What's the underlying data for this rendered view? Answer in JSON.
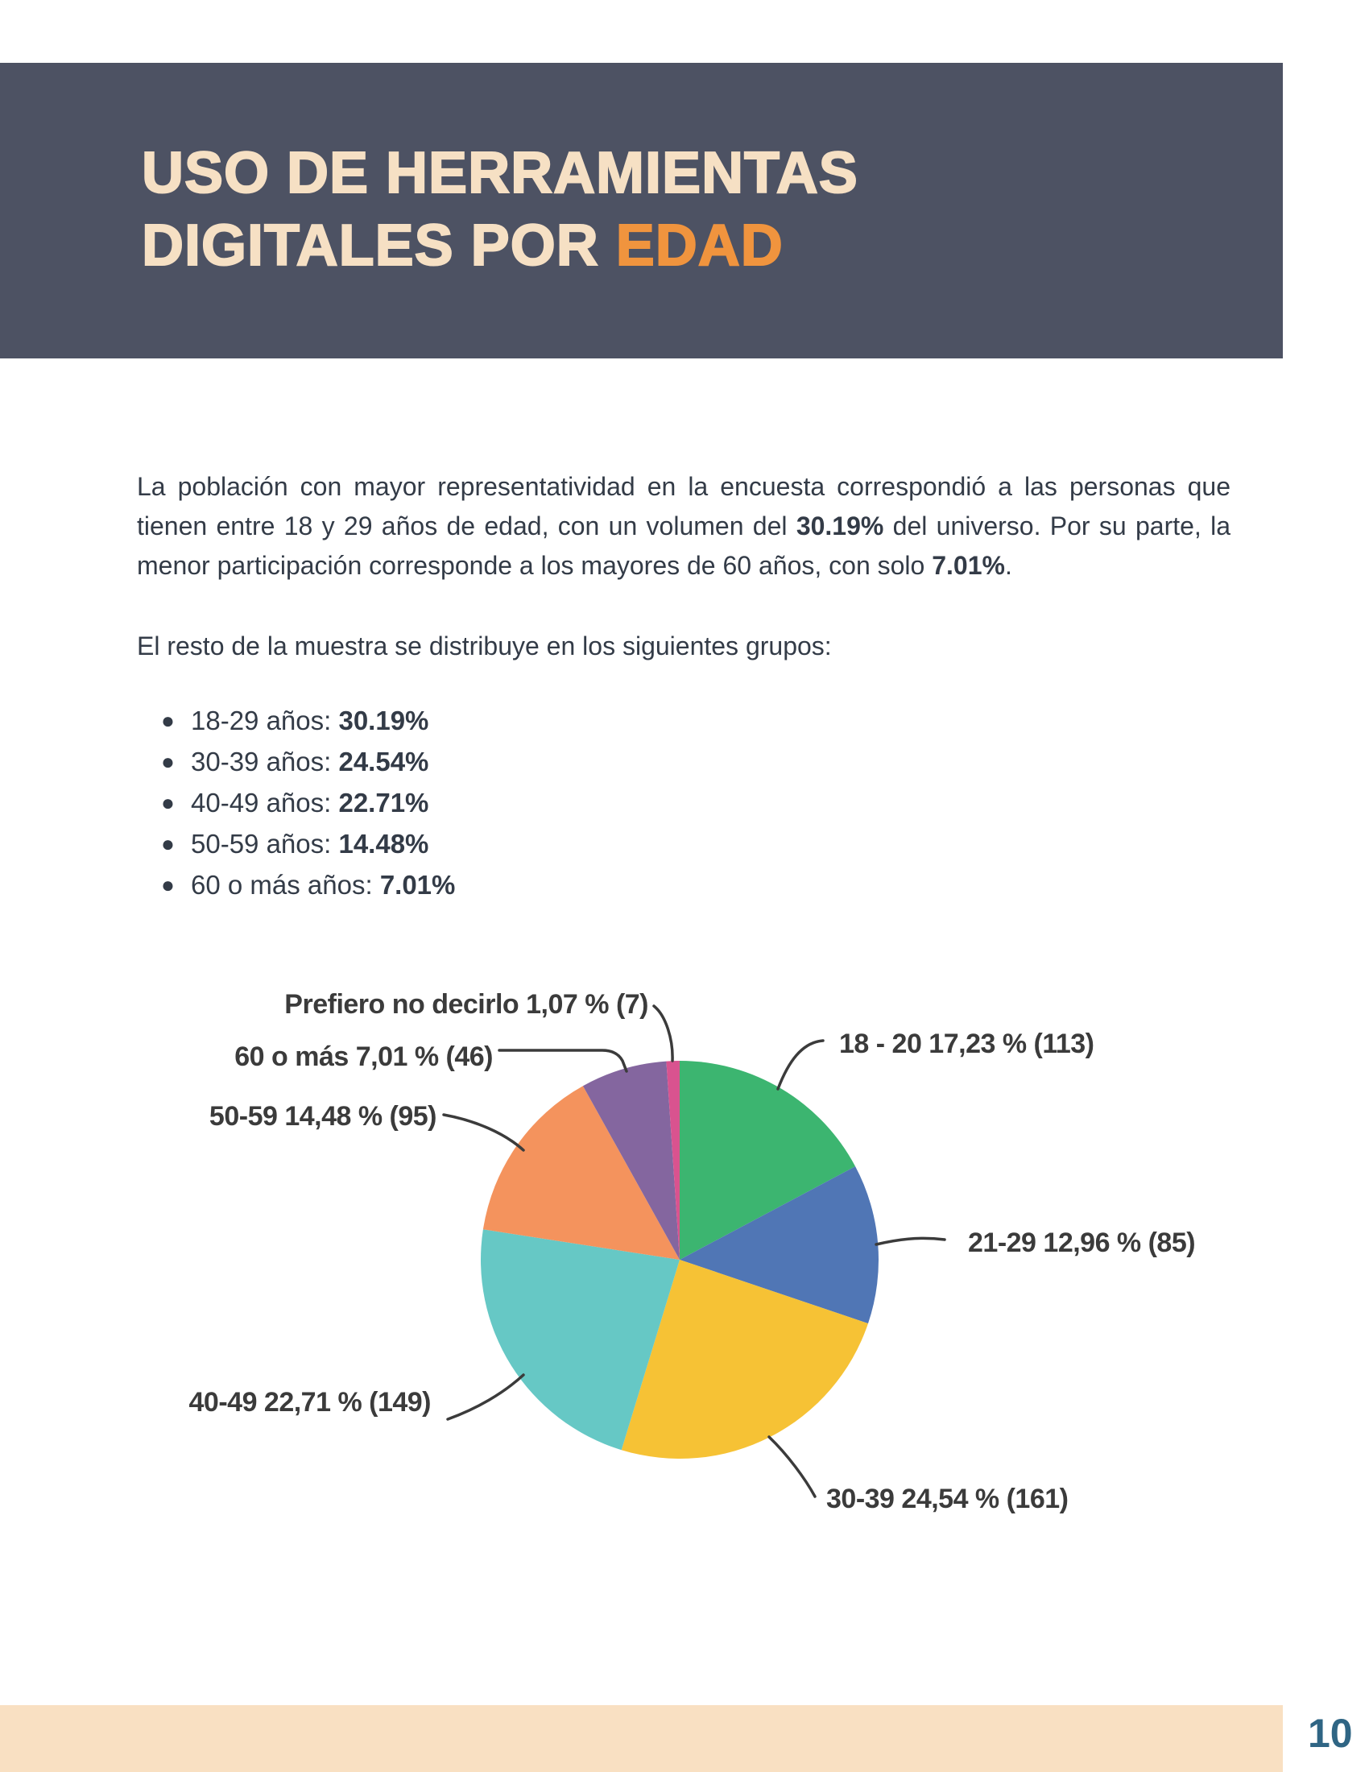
{
  "colors": {
    "slate": "#4D5263",
    "cream": "#F6E0C4",
    "accent_orange": "#F0943E",
    "peach": "#F9E0C2",
    "page_number": "#2F6584",
    "body_text": "#333B47",
    "label_text": "#3B3B3B"
  },
  "header": {
    "title_line1": "USO DE HERRAMIENTAS",
    "title_line2_prefix": "DIGITALES POR ",
    "title_highlight": "EDAD"
  },
  "intro": {
    "seg1": "La población con mayor representatividad en la encuesta correspondió a las personas que tienen entre 18 y 29 años de edad, con un volumen del ",
    "bold1": "30.19%",
    "seg2": " del universo. Por su parte, la menor participación corresponde a los mayores de 60 años, con solo ",
    "bold2": "7.01%",
    "seg3": "."
  },
  "subtitle": "El resto de la muestra se distribuye en los siguientes grupos:",
  "bullets": [
    {
      "label": "18-29 años: ",
      "value": "30.19%"
    },
    {
      "label": "30-39 años: ",
      "value": "24.54%"
    },
    {
      "label": "40-49 años: ",
      "value": "22.71%"
    },
    {
      "label": "50-59 años: ",
      "value": "14.48%"
    },
    {
      "label": "60 o más años: ",
      "value": "7.01%"
    }
  ],
  "chart_data": {
    "type": "pie",
    "start_angle_deg": 0,
    "direction": "clockwise",
    "slices": [
      {
        "label": "18 - 20",
        "pct": 17.23,
        "count": 113,
        "display": "18 - 20 17,23 % (113)",
        "color": "#3CB570"
      },
      {
        "label": "21-29",
        "pct": 12.96,
        "count": 85,
        "display": "21-29 12,96 % (85)",
        "color": "#5076B5"
      },
      {
        "label": "30-39",
        "pct": 24.54,
        "count": 161,
        "display": "30-39 24,54 % (161)",
        "color": "#F6C235"
      },
      {
        "label": "40-49",
        "pct": 22.71,
        "count": 149,
        "display": "40-49 22,71 % (149)",
        "color": "#66C8C5"
      },
      {
        "label": "50-59",
        "pct": 14.48,
        "count": 95,
        "display": "50-59 14,48 % (95)",
        "color": "#F4935D"
      },
      {
        "label": "60 o más",
        "pct": 7.01,
        "count": 46,
        "display": "60 o más 7,01 % (46)",
        "color": "#84669F"
      },
      {
        "label": "Prefiero no decirlo",
        "pct": 1.07,
        "count": 7,
        "display": "Prefiero no decirlo 1,07 % (7)",
        "color": "#D9538F"
      }
    ]
  },
  "page": {
    "number": "10"
  }
}
